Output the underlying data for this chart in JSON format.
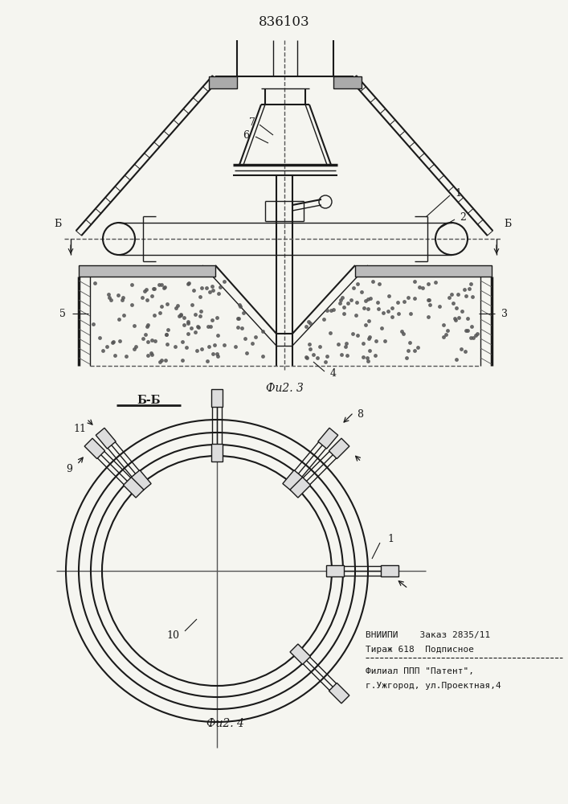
{
  "title": "836103",
  "fig3_caption": "Фu2. 3",
  "fig4_caption": "Фu2. 4",
  "section_label": "Б-Б",
  "bg_color": "#f5f5f0",
  "line_color": "#1a1a1a",
  "vniipi_line1": "ВНИИПИ    Заказ 2835/11",
  "vniipi_line2": "Тираж 618  Подписное",
  "filial_line1": "Филиал ППП \"Патент\",",
  "filial_line2": "г.Ужгород, ул.Проектная,4"
}
